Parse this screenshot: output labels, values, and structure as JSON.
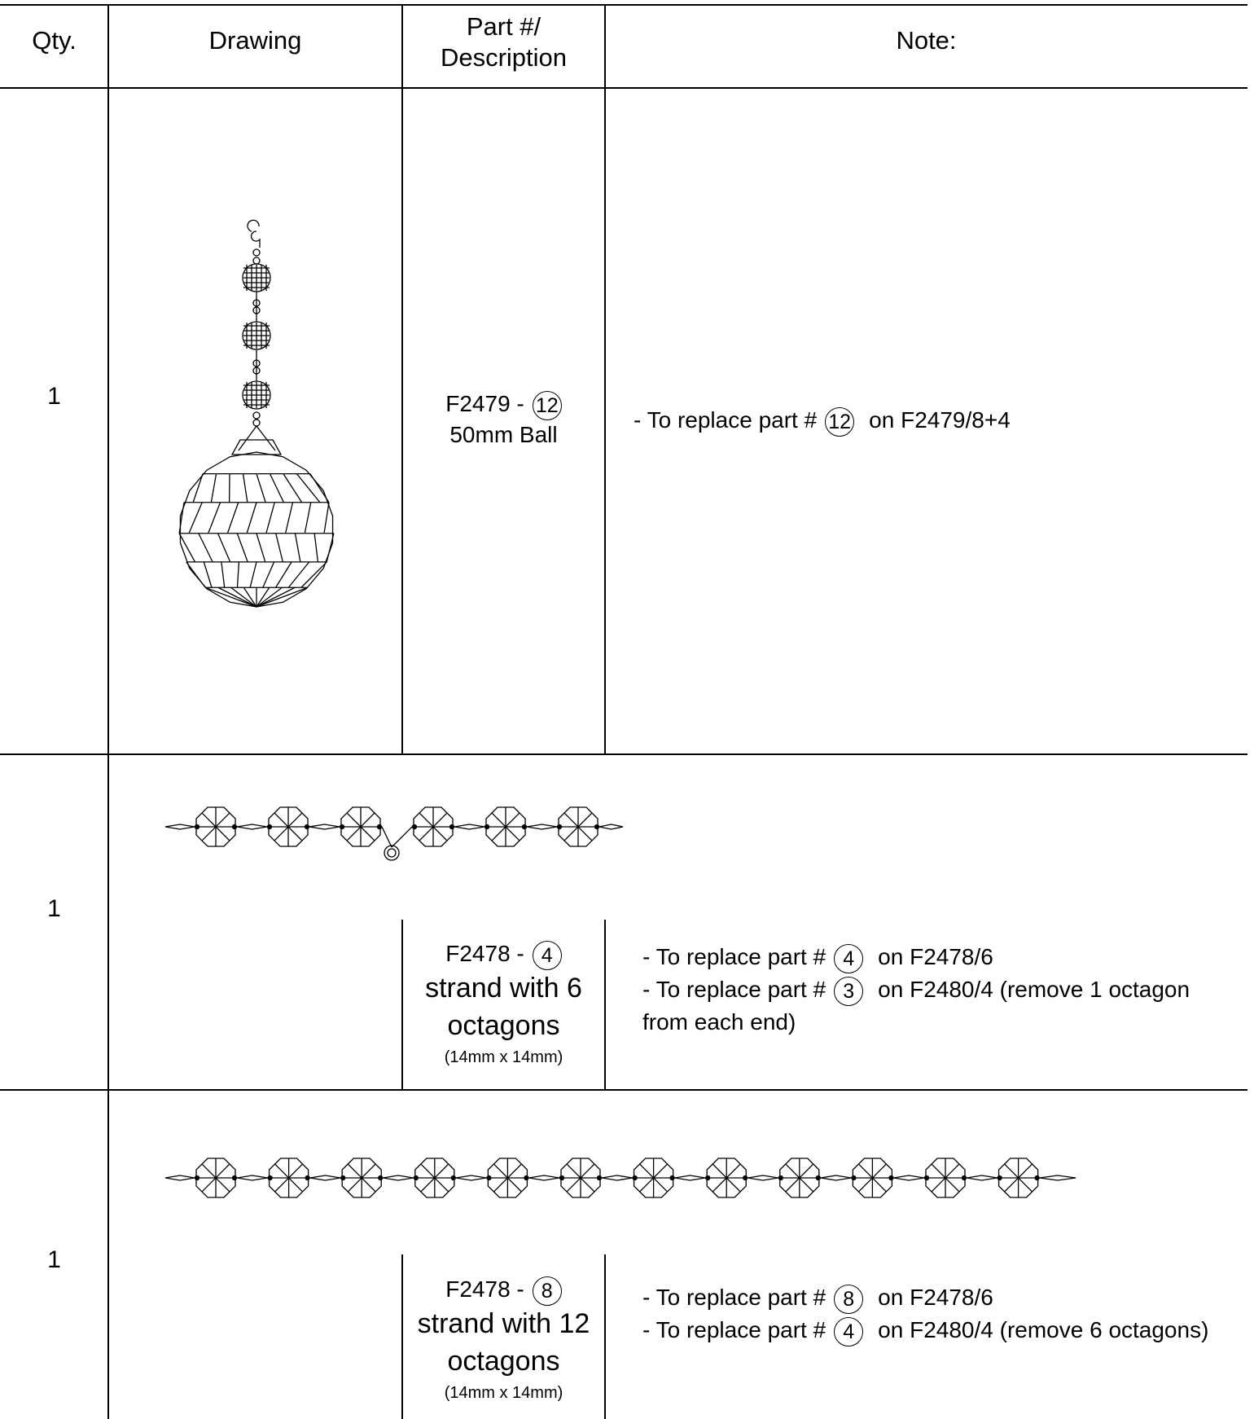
{
  "header": {
    "qty": "Qty.",
    "drawing": "Drawing",
    "part_line1": "Part #/",
    "part_line2": "Description",
    "note": "Note:"
  },
  "rows": [
    {
      "qty": "1",
      "part_number": "F2479 -",
      "part_circle": "12",
      "description": [
        "50mm Ball"
      ],
      "size": null,
      "notes": [
        {
          "prefix": "- To replace part #",
          "circle": "12",
          "suffix": "on F2479/8+4"
        }
      ]
    },
    {
      "qty": "1",
      "part_number": "F2478 -",
      "part_circle": "4",
      "description": [
        "strand with 6",
        "octagons"
      ],
      "size": "(14mm x 14mm)",
      "notes": [
        {
          "prefix": "- To replace part #",
          "circle": "4",
          "suffix": "on F2478/6"
        },
        {
          "prefix": "- To replace part #",
          "circle": "3",
          "suffix": "on F2480/4  (remove 1 octagon from each end)"
        }
      ]
    },
    {
      "qty": "1",
      "part_number": "F2478 -",
      "part_circle": "8",
      "description": [
        "strand with 12",
        "octagons"
      ],
      "size": "(14mm x 14mm)",
      "notes": [
        {
          "prefix": "- To replace part #",
          "circle": "8",
          "suffix": "on F2478/6"
        },
        {
          "prefix": "- To replace part #",
          "circle": "4",
          "suffix": "on F2480/4  (remove 6 octagons)"
        }
      ]
    }
  ]
}
